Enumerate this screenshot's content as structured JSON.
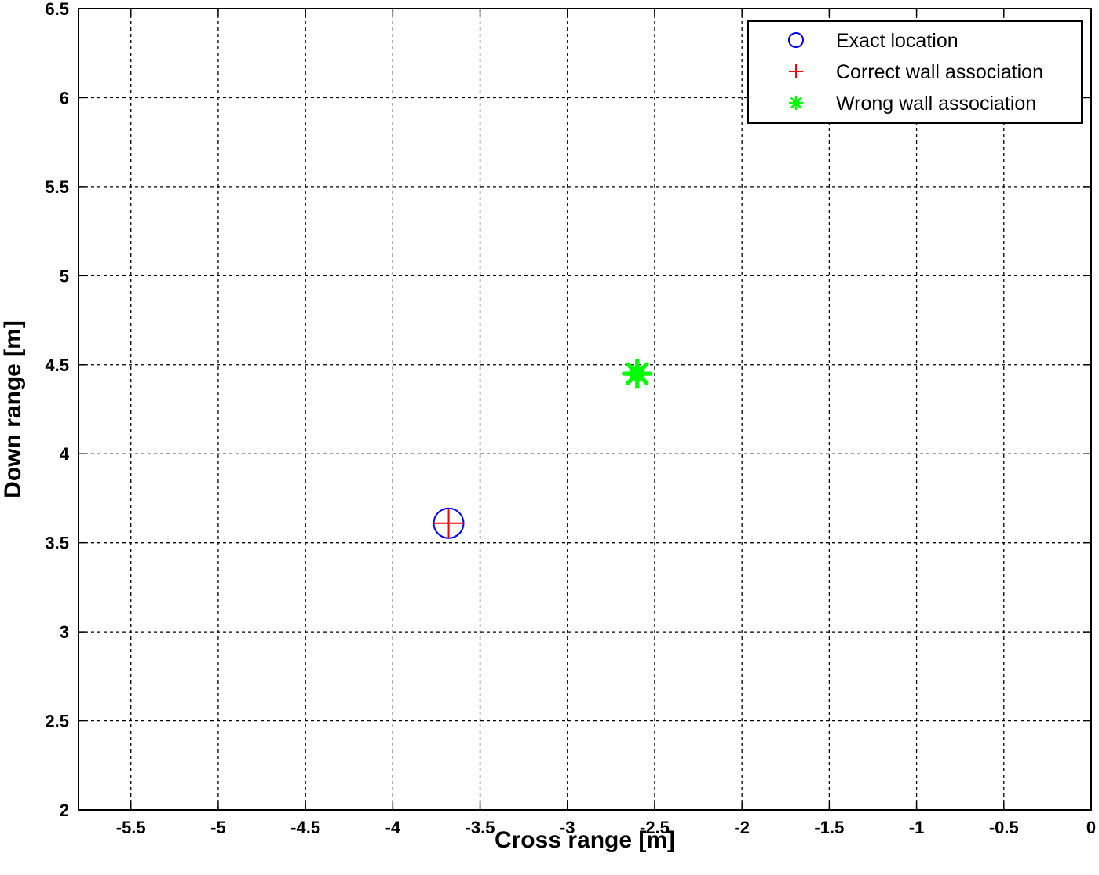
{
  "chart_data": {
    "type": "scatter",
    "xlabel": "Cross range [m]",
    "ylabel": "Down range [m]",
    "xlim": [
      -5.8,
      0
    ],
    "ylim": [
      2,
      6.5
    ],
    "xticks": [
      -5.5,
      -5,
      -4.5,
      -4,
      -3.5,
      -3,
      -2.5,
      -2,
      -1.5,
      -1,
      -0.5,
      0
    ],
    "yticks": [
      2,
      2.5,
      3,
      3.5,
      4,
      4.5,
      5,
      5.5,
      6,
      6.5
    ],
    "grid": true,
    "legend_position": "top-right",
    "series": [
      {
        "name": "Exact location",
        "marker": "circle",
        "color": "#0000ff",
        "points": [
          {
            "x": -3.68,
            "y": 3.61
          }
        ]
      },
      {
        "name": "Correct wall association",
        "marker": "plus",
        "color": "#ff0000",
        "points": [
          {
            "x": -3.68,
            "y": 3.61
          }
        ]
      },
      {
        "name": "Wrong wall association",
        "marker": "star",
        "color": "#00ff00",
        "points": [
          {
            "x": -2.6,
            "y": 4.45
          }
        ]
      }
    ]
  }
}
